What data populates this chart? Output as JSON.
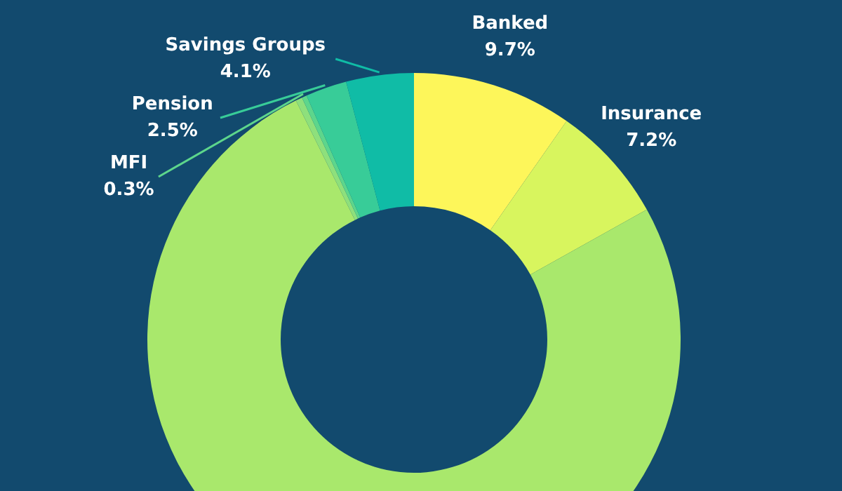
{
  "chart_data": {
    "type": "donut",
    "categories": [
      "Banked",
      "Insurance",
      null,
      null,
      "MFI",
      "Pension",
      "Savings Groups"
    ],
    "values": [
      9.7,
      7.2,
      75.8,
      0.4,
      0.3,
      2.5,
      4.1
    ],
    "value_labels": [
      "9.7%",
      "7.2%",
      null,
      null,
      "0.3%",
      "2.5%",
      "4.1%"
    ],
    "colors": [
      "#fdf65a",
      "#d8f55e",
      "#a9e86c",
      "#8ee07c",
      "#5dd68c",
      "#38cc98",
      "#10bca6"
    ],
    "legend": false
  }
}
